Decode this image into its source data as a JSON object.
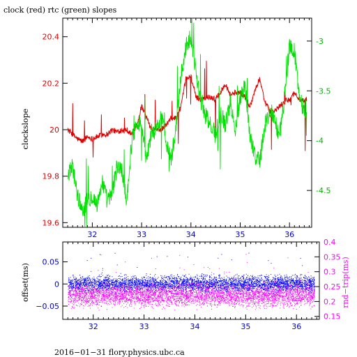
{
  "chart_data": [
    {
      "type": "line",
      "title": "clock (red) rtc (green) slopes",
      "ylabel": "clockslope",
      "xlim": [
        31.4,
        36.45
      ],
      "x_ticks": [
        32,
        33,
        34,
        35,
        36
      ],
      "x_tick_labels": [
        "32",
        "33",
        "34",
        "35",
        "36"
      ],
      "ylim": [
        19.58,
        20.48
      ],
      "y_ticks": [
        19.6,
        19.8,
        20.0,
        20.2,
        20.4
      ],
      "y_tick_labels": [
        "19.6",
        "19.8",
        "20",
        "20.2",
        "20.4"
      ],
      "y2lim": [
        -4.87,
        -2.77
      ],
      "y2_ticks": [
        -4.5,
        -4.0,
        -3.5,
        -3.0
      ],
      "y2_tick_labels": [
        "-4.5",
        "-4",
        "-3.5",
        "-3"
      ],
      "series": [
        {
          "color": "#e00000",
          "axis": "left",
          "x": [
            31.5,
            31.6,
            31.7,
            31.8,
            31.9,
            32.0,
            32.1,
            32.2,
            32.3,
            32.4,
            32.5,
            32.6,
            32.7,
            32.8,
            32.9,
            33.0,
            33.1,
            33.2,
            33.3,
            33.4,
            33.5,
            33.6,
            33.7,
            33.8,
            33.9,
            34.0,
            34.1,
            34.2,
            34.3,
            34.4,
            34.5,
            34.6,
            34.7,
            34.8,
            34.9,
            35.0,
            35.1,
            35.2,
            35.3,
            35.4,
            35.5,
            35.6,
            35.7,
            35.8,
            35.9,
            36.0,
            36.1,
            36.2,
            36.3,
            36.35
          ],
          "y": [
            20.0,
            19.98,
            19.96,
            19.95,
            19.97,
            19.96,
            19.97,
            19.98,
            19.98,
            20.0,
            19.99,
            20.0,
            20.0,
            19.98,
            20.02,
            20.1,
            20.05,
            20.0,
            20.0,
            20.0,
            20.02,
            20.05,
            20.05,
            20.1,
            20.22,
            20.23,
            20.14,
            20.13,
            20.14,
            20.14,
            20.13,
            20.16,
            20.2,
            20.15,
            20.16,
            20.16,
            20.14,
            20.1,
            20.17,
            20.22,
            20.12,
            20.08,
            20.08,
            20.1,
            20.12,
            20.13,
            20.16,
            20.13,
            20.12,
            20.13
          ]
        },
        {
          "color": "#00e000",
          "axis": "right",
          "x": [
            31.5,
            31.6,
            31.7,
            31.8,
            31.9,
            32.0,
            32.1,
            32.2,
            32.3,
            32.4,
            32.5,
            32.6,
            32.7,
            32.8,
            32.9,
            33.0,
            33.1,
            33.2,
            33.3,
            33.4,
            33.5,
            33.6,
            33.7,
            33.8,
            33.9,
            34.0,
            34.1,
            34.2,
            34.3,
            34.4,
            34.5,
            34.6,
            34.7,
            34.8,
            34.9,
            35.0,
            35.1,
            35.2,
            35.3,
            35.4,
            35.5,
            35.6,
            35.7,
            35.8,
            35.9,
            36.0,
            36.1,
            36.2,
            36.3,
            36.35
          ],
          "y": [
            -4.35,
            -4.25,
            -4.55,
            -4.7,
            -4.6,
            -4.55,
            -4.65,
            -4.4,
            -4.6,
            -4.55,
            -4.25,
            -4.3,
            -4.6,
            -4.0,
            -3.8,
            -3.85,
            -4.2,
            -3.9,
            -3.9,
            -3.75,
            -4.0,
            -4.2,
            -3.85,
            -3.35,
            -3.05,
            -2.95,
            -3.3,
            -3.6,
            -3.75,
            -3.85,
            -3.95,
            -3.7,
            -3.85,
            -3.6,
            -3.9,
            -3.55,
            -3.45,
            -3.95,
            -4.15,
            -4.2,
            -3.85,
            -3.7,
            -3.8,
            -3.95,
            -3.55,
            -3.05,
            -3.1,
            -3.55,
            -3.7,
            -3.65
          ]
        }
      ]
    },
    {
      "type": "scatter",
      "ylabel": "offset(ms)",
      "y2label": "rnd−trip(ms)",
      "xlim": [
        31.4,
        36.45
      ],
      "x_ticks": [
        32,
        33,
        34,
        35,
        36
      ],
      "x_tick_labels": [
        "32",
        "33",
        "34",
        "35",
        "36"
      ],
      "ylim": [
        -0.08,
        0.095
      ],
      "y_ticks": [
        -0.05,
        0,
        0.05
      ],
      "y_tick_labels": [
        "−0.05",
        "0",
        "0.05"
      ],
      "y2lim": [
        0.14,
        0.4
      ],
      "y2_ticks": [
        0.15,
        0.2,
        0.25,
        0.3,
        0.35,
        0.4
      ],
      "y2_tick_labels": [
        "0.15",
        "0.2",
        "0.25",
        "0.3",
        "0.35",
        "0.4"
      ],
      "series": [
        {
          "color": "#0000ff",
          "axis": "left",
          "x_range": [
            31.5,
            36.35
          ],
          "band": [
            -0.02,
            0.02
          ]
        },
        {
          "color": "#ff00ff",
          "axis": "right",
          "x_range": [
            31.5,
            36.35
          ],
          "band": [
            0.18,
            0.26
          ]
        }
      ]
    }
  ],
  "footer": "2016−01−31 flory.physics.ubc.ca"
}
